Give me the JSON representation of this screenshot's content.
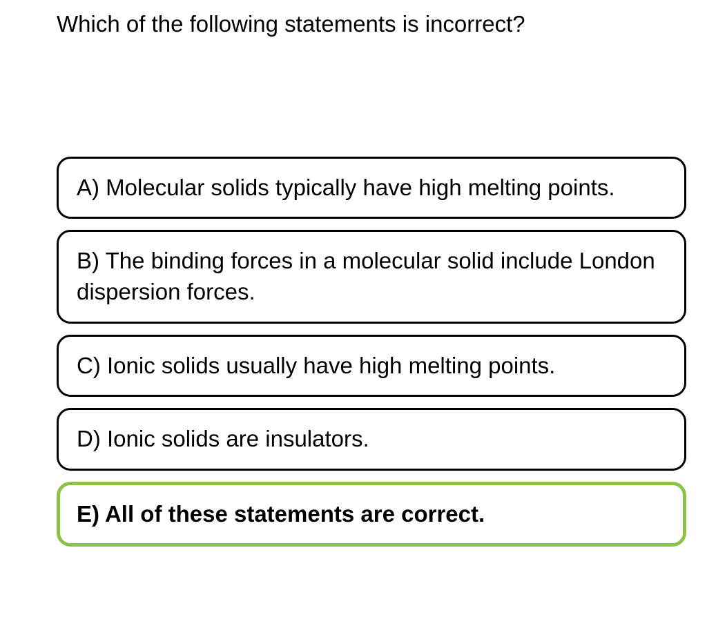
{
  "question": {
    "text": "Which of the following statements is incorrect?"
  },
  "options": [
    {
      "label": "A) Molecular solids typically have high melting points.",
      "selected": false
    },
    {
      "label": "B) The binding forces in a molecular solid include London dispersion forces.",
      "selected": false
    },
    {
      "label": "C) Ionic solids usually have high melting points.",
      "selected": false
    },
    {
      "label": "D) Ionic solids are insulators.",
      "selected": false
    },
    {
      "label": "E) All of these statements are correct.",
      "selected": true
    }
  ],
  "styles": {
    "question_fontsize": 33,
    "option_fontsize": 33,
    "border_color_default": "#000000",
    "border_color_selected": "#8bc34a",
    "border_width_default": 3,
    "border_width_selected": 5,
    "border_radius": 20,
    "background_color": "#ffffff",
    "text_color": "#000000",
    "selected_font_weight": "bold"
  }
}
